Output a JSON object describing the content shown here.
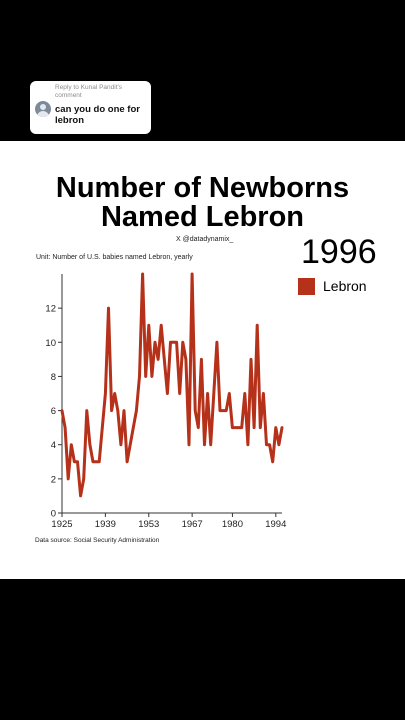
{
  "reply": {
    "meta": "Reply to Kunal Pandit's comment",
    "comment": "can you do one for lebron"
  },
  "chart_data": {
    "type": "line",
    "title": "Number of Newborns\nNamed Lebron",
    "credit": "X @datadynamix_",
    "unit": "Unit: Number of U.S. babies named Lebron, yearly",
    "current_year": "1996",
    "source": "Data source: Social Security Administration",
    "xlim": [
      1925,
      1996
    ],
    "ylim": [
      0,
      14
    ],
    "x_ticks": [
      "1925",
      "1939",
      "1953",
      "1967",
      "1980",
      "1994"
    ],
    "y_ticks": [
      "0",
      "2",
      "4",
      "6",
      "8",
      "10",
      "12"
    ],
    "color": "#b5311a",
    "series": [
      {
        "name": "Lebron",
        "x": [
          1925,
          1926,
          1927,
          1928,
          1929,
          1930,
          1931,
          1932,
          1933,
          1934,
          1935,
          1936,
          1937,
          1938,
          1939,
          1940,
          1941,
          1942,
          1943,
          1944,
          1945,
          1946,
          1947,
          1948,
          1949,
          1950,
          1951,
          1952,
          1953,
          1954,
          1955,
          1956,
          1957,
          1958,
          1959,
          1960,
          1961,
          1962,
          1963,
          1964,
          1965,
          1966,
          1967,
          1968,
          1969,
          1970,
          1971,
          1972,
          1973,
          1974,
          1975,
          1976,
          1977,
          1978,
          1979,
          1980,
          1981,
          1982,
          1983,
          1984,
          1985,
          1986,
          1987,
          1988,
          1989,
          1990,
          1991,
          1992,
          1993,
          1994,
          1995,
          1996
        ],
        "values": [
          6,
          5,
          2,
          4,
          3,
          3,
          1,
          2,
          6,
          4,
          3,
          3,
          3,
          5,
          7,
          12,
          6,
          7,
          6,
          4,
          6,
          3,
          4,
          5,
          6,
          8,
          14,
          8,
          11,
          8,
          10,
          9,
          11,
          9,
          7,
          10,
          10,
          10,
          7,
          10,
          9,
          4,
          14,
          6,
          5,
          9,
          4,
          7,
          4,
          7,
          10,
          6,
          6,
          6,
          7,
          5,
          5,
          5,
          5,
          7,
          4,
          9,
          5,
          11,
          5,
          7,
          4,
          4,
          3,
          5,
          4,
          5
        ]
      }
    ],
    "grid": false,
    "legend_position": "top-right"
  }
}
